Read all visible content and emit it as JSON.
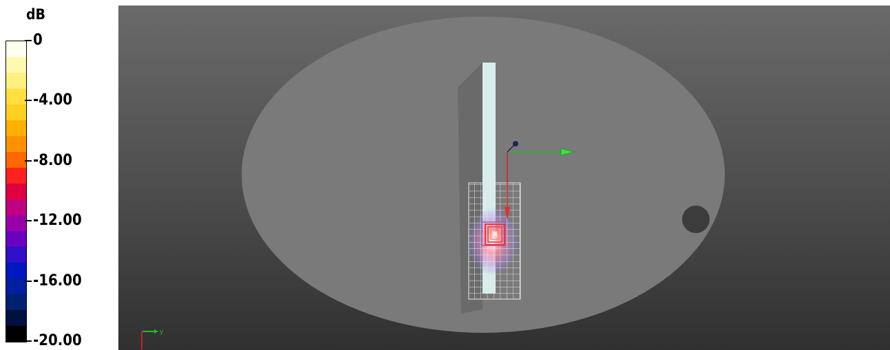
{
  "legend": {
    "unit": "dB",
    "ticks": [
      "0",
      "-4.00",
      "-8.00",
      "-12.00",
      "-16.00",
      "-20.00"
    ],
    "colors": [
      "#fffff0",
      "#fff9b0",
      "#fff080",
      "#ffe040",
      "#ffd020",
      "#ffb000",
      "#ff9000",
      "#ff6800",
      "#ff2020",
      "#e00040",
      "#c00080",
      "#9a00a8",
      "#6a00c0",
      "#3010c8",
      "#0018c0",
      "#0020a0",
      "#002070",
      "#001040",
      "#000000"
    ]
  },
  "viewport": {
    "background_top": "#6a6a6a",
    "background_bottom": "#303030",
    "disc_color": "#7c7c7c",
    "bar_color": "#d8eeec",
    "hotspot_color": "#ff3030",
    "axis_x_color": "#d02020",
    "axis_y_color": "#20c020",
    "axis_z_color": "#202060"
  },
  "axis_widget": {
    "y_label": "y"
  }
}
